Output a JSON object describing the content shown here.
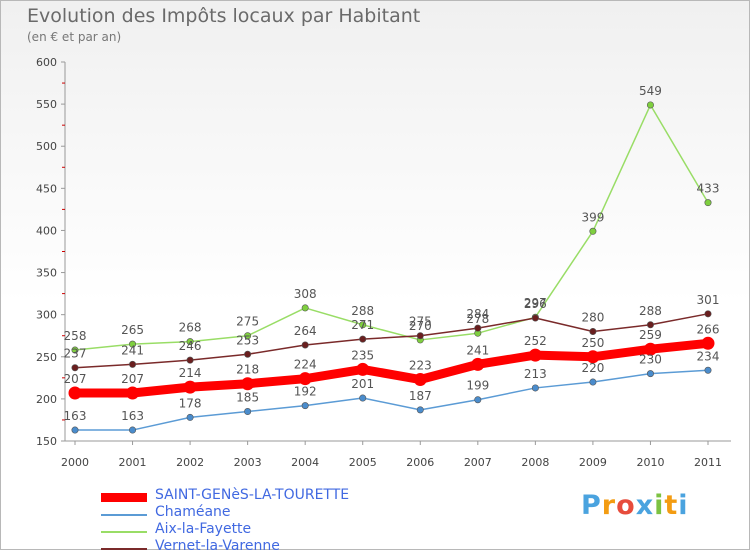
{
  "title": "Evolution des Impôts locaux par Habitant",
  "subtitle": "(en € et par an)",
  "brand": {
    "text": "Proxiti",
    "letters": [
      {
        "ch": "P",
        "color": "#4aa3df"
      },
      {
        "ch": "r",
        "color": "#f39c12"
      },
      {
        "ch": "o",
        "color": "#e74c3c"
      },
      {
        "ch": "x",
        "color": "#4aa3df"
      },
      {
        "ch": "i",
        "color": "#7cc242"
      },
      {
        "ch": "t",
        "color": "#f39c12"
      },
      {
        "ch": "i",
        "color": "#4aa3df"
      }
    ]
  },
  "chart_data": {
    "type": "line",
    "title": "Evolution des Impôts locaux par Habitant",
    "subtitle": "(en € et par an)",
    "xlabel": "",
    "ylabel": "",
    "categories": [
      "2000",
      "2001",
      "2002",
      "2003",
      "2004",
      "2005",
      "2006",
      "2007",
      "2008",
      "2009",
      "2010",
      "2011"
    ],
    "ylim": [
      150,
      600
    ],
    "yticks": [
      150,
      200,
      250,
      300,
      350,
      400,
      450,
      500,
      550,
      600
    ],
    "grid": false,
    "legend_position": "bottom-left",
    "series": [
      {
        "name": "SAINT-GENèS-LA-TOURETTE",
        "color": "#ff0000",
        "bold": true,
        "values": [
          207,
          207,
          214,
          218,
          224,
          235,
          223,
          241,
          252,
          250,
          259,
          266
        ]
      },
      {
        "name": "Chaméane",
        "color": "#5b9bd5",
        "bold": false,
        "values": [
          163,
          163,
          178,
          185,
          192,
          201,
          187,
          199,
          213,
          220,
          230,
          234
        ]
      },
      {
        "name": "Aix-la-Fayette",
        "color": "#99dd66",
        "bold": false,
        "values": [
          258,
          265,
          268,
          275,
          308,
          288,
          270,
          278,
          297,
          399,
          549,
          433
        ]
      },
      {
        "name": "Vernet-la-Varenne",
        "color": "#7a2a2a",
        "bold": false,
        "values": [
          237,
          241,
          246,
          253,
          264,
          271,
          275,
          284,
          296,
          280,
          288,
          301
        ]
      }
    ]
  }
}
